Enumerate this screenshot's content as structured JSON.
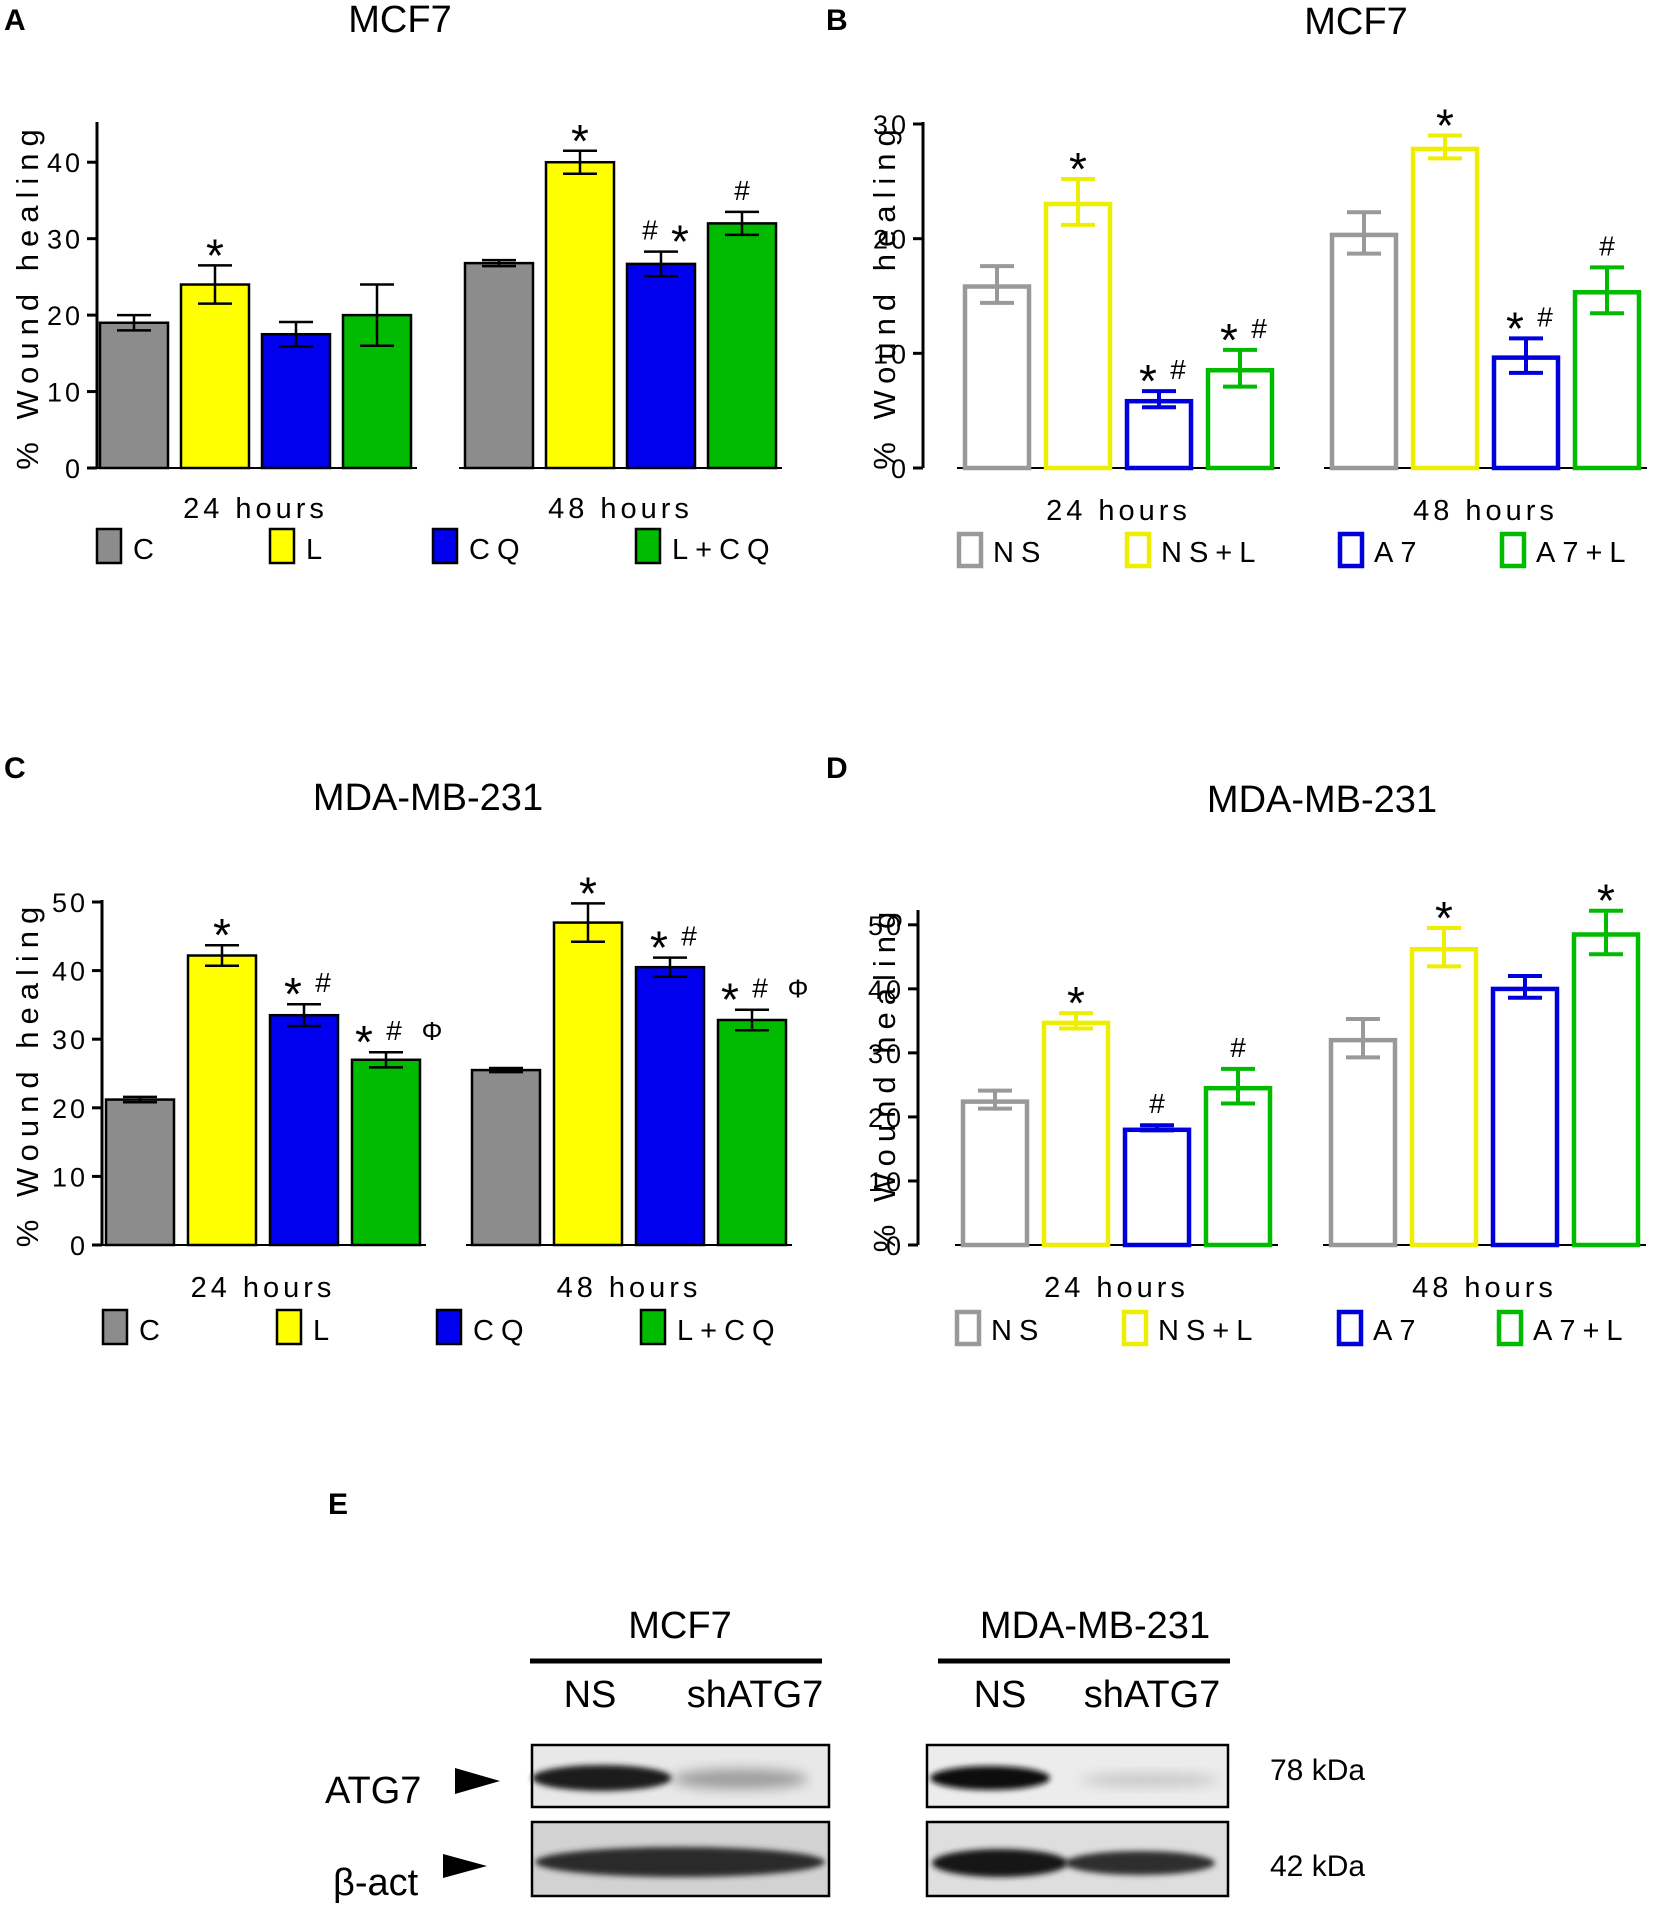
{
  "chart_data": [
    {
      "panel": "A",
      "type": "bar",
      "style": "filled",
      "title": "MCF7",
      "ylabel": "% Wound healing",
      "ylim": [
        0,
        45
      ],
      "yticks": [
        0,
        10,
        20,
        30,
        40
      ],
      "groups": [
        "24 hours",
        "48 hours"
      ],
      "series": [
        {
          "name": "C",
          "color": "#8c8c8c",
          "values": [
            19,
            26.8
          ],
          "errors": [
            1,
            0.4
          ],
          "annotations": [
            "",
            ""
          ]
        },
        {
          "name": "L",
          "color": "#ffff00",
          "values": [
            24,
            40
          ],
          "errors": [
            2.5,
            1.5
          ],
          "annotations": [
            "*",
            "*"
          ]
        },
        {
          "name": "CQ",
          "color": "#0000ee",
          "values": [
            17.5,
            26.7
          ],
          "errors": [
            1.6,
            1.6
          ],
          "annotations": [
            "",
            "# *"
          ]
        },
        {
          "name": "L+CQ",
          "color": "#00bb00",
          "values": [
            20,
            32
          ],
          "errors": [
            4,
            1.5
          ],
          "annotations": [
            "",
            "#"
          ]
        }
      ]
    },
    {
      "panel": "B",
      "type": "bar",
      "style": "outline",
      "title": "MCF7",
      "ylabel": "% Wound healing",
      "ylim": [
        0,
        30
      ],
      "yticks": [
        0,
        10,
        20,
        30
      ],
      "groups": [
        "24 hours",
        "48 hours"
      ],
      "series": [
        {
          "name": "NS",
          "color": "#999999",
          "values": [
            16,
            20.5
          ],
          "errors": [
            1.6,
            1.8
          ],
          "annotations": [
            "",
            ""
          ]
        },
        {
          "name": "NS+L",
          "color": "#eeee00",
          "values": [
            23.2,
            28
          ],
          "errors": [
            2,
            1
          ],
          "annotations": [
            "*",
            "*"
          ]
        },
        {
          "name": "A7",
          "color": "#0000dd",
          "values": [
            6,
            9.8
          ],
          "errors": [
            0.7,
            1.5
          ],
          "annotations": [
            "* #",
            "* #"
          ]
        },
        {
          "name": "A7+L",
          "color": "#00bb00",
          "values": [
            8.7,
            15.5
          ],
          "errors": [
            1.6,
            2
          ],
          "annotations": [
            "* #",
            "#"
          ]
        }
      ]
    },
    {
      "panel": "C",
      "type": "bar",
      "style": "filled",
      "title": "MDA-MB-231",
      "ylabel": "% Wound healing",
      "ylim": [
        0,
        50
      ],
      "yticks": [
        0,
        10,
        20,
        30,
        40,
        50
      ],
      "groups": [
        "24 hours",
        "48 hours"
      ],
      "series": [
        {
          "name": "C",
          "color": "#8c8c8c",
          "values": [
            21.2,
            25.5
          ],
          "errors": [
            0.4,
            0.3
          ],
          "annotations": [
            "",
            ""
          ]
        },
        {
          "name": "L",
          "color": "#ffff00",
          "values": [
            42.2,
            47
          ],
          "errors": [
            1.5,
            2.8
          ],
          "annotations": [
            "*",
            "*"
          ]
        },
        {
          "name": "CQ",
          "color": "#0000ee",
          "values": [
            33.5,
            40.5
          ],
          "errors": [
            1.6,
            1.4
          ],
          "annotations": [
            "* #",
            "* #"
          ]
        },
        {
          "name": "L+CQ",
          "color": "#00bb00",
          "values": [
            27,
            32.8
          ],
          "errors": [
            1.1,
            1.5
          ],
          "annotations": [
            "* # Φ",
            "* # Φ"
          ]
        }
      ]
    },
    {
      "panel": "D",
      "type": "bar",
      "style": "outline",
      "title": "MDA-MB-231",
      "ylabel": "% Wound healing",
      "ylim": [
        0,
        52
      ],
      "yticks": [
        0,
        10,
        20,
        30,
        40,
        50
      ],
      "groups": [
        "24 hours",
        "48 hours"
      ],
      "series": [
        {
          "name": "NS",
          "color": "#999999",
          "values": [
            22.7,
            32.3
          ],
          "errors": [
            1.4,
            3
          ],
          "annotations": [
            "",
            ""
          ]
        },
        {
          "name": "NS+L",
          "color": "#eeee00",
          "values": [
            35,
            46.5
          ],
          "errors": [
            1.2,
            3
          ],
          "annotations": [
            "*",
            "*"
          ]
        },
        {
          "name": "A7",
          "color": "#0000dd",
          "values": [
            18.3,
            40.3
          ],
          "errors": [
            0.4,
            1.7
          ],
          "annotations": [
            "#",
            ""
          ]
        },
        {
          "name": "A7+L",
          "color": "#00bb00",
          "values": [
            24.8,
            48.8
          ],
          "errors": [
            2.7,
            3.4
          ],
          "annotations": [
            "#",
            "*"
          ]
        }
      ]
    }
  ],
  "blot": {
    "panel": "E",
    "cell_lines": [
      "MCF7",
      "MDA-MB-231"
    ],
    "lanes": [
      "NS",
      "shATG7"
    ],
    "proteins": [
      {
        "name": "ATG7",
        "size": "78 kDa"
      },
      {
        "name": "β-act",
        "size": "42 kDa"
      }
    ]
  }
}
